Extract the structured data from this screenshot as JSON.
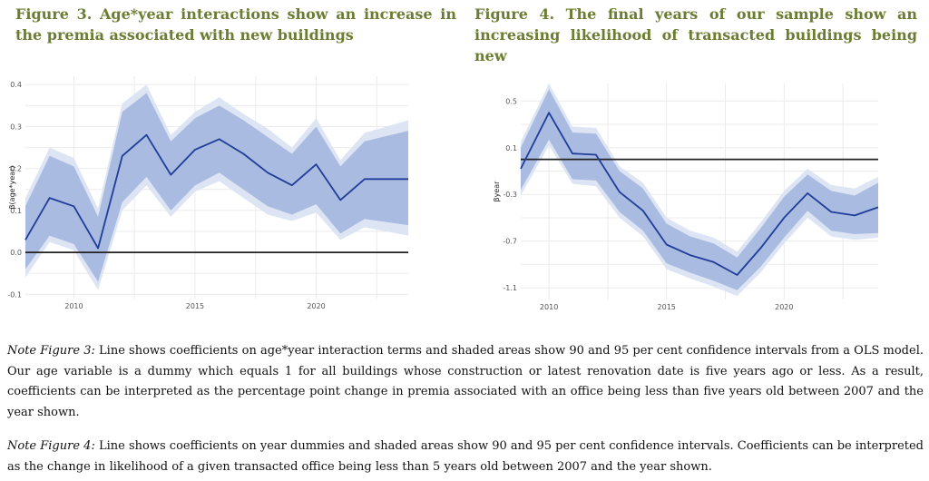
{
  "titles": {
    "fig3": "Figure 3. Age*year interactions show an increase in the premia associated with new buildings",
    "fig4": "Figure 4. The final years of our sample show an increasing likelihood of transacted buildings being new"
  },
  "notes": {
    "fig3_lead": "Note Figure 3:",
    "fig3_body": " Line shows coefficients on age*year interaction terms and shaded areas show 90 and 95 per cent confidence intervals from a OLS model. Our age variable is a dummy which equals 1 for all buildings whose construction or latest renovation date is five years ago or less. As a result, coefficients can be interpreted as the percentage point change in premia associated with an office being less than five years old between 2007 and the year shown.",
    "fig4_lead": "Note Figure 4:",
    "fig4_body": " Line shows coefficients on year dummies and shaded areas show 90 and 95 per cent confidence intervals. Coefficients can be interpreted as the change in likelihood of a given transacted office being less than 5 years old between 2007 and the year shown."
  },
  "colors": {
    "line": "#1f3d99",
    "ci90": "#a9bbe0",
    "ci95": "#dde4f3",
    "zero": "#222222",
    "grid": "#ebebeb"
  },
  "chart_data": [
    {
      "type": "line",
      "ylabel": "β(age*year)",
      "xlim": [
        2008,
        2023.8
      ],
      "ylim": [
        -0.11,
        0.42
      ],
      "xticks": [
        2010,
        2015,
        2020
      ],
      "yticks": [
        -0.1,
        0.0,
        0.1,
        0.2,
        0.3,
        0.4
      ],
      "ytick_labels": [
        "-0.1",
        "0.0",
        "0.1",
        "0.2",
        "0.3",
        "0.4"
      ],
      "reference_line": 0,
      "grid": true,
      "x": [
        2008,
        2009,
        2010,
        2011,
        2012,
        2013,
        2014,
        2015,
        2016,
        2017,
        2018,
        2019,
        2020,
        2021,
        2022,
        2023.8
      ],
      "y": [
        0.03,
        0.13,
        0.11,
        0.01,
        0.23,
        0.28,
        0.185,
        0.245,
        0.27,
        0.235,
        0.19,
        0.16,
        0.21,
        0.125,
        0.175,
        0.175
      ],
      "ci90_low": [
        -0.04,
        0.04,
        0.02,
        -0.07,
        0.12,
        0.18,
        0.1,
        0.16,
        0.19,
        0.15,
        0.11,
        0.09,
        0.115,
        0.045,
        0.08,
        0.065
      ],
      "ci90_high": [
        0.11,
        0.23,
        0.205,
        0.085,
        0.335,
        0.38,
        0.265,
        0.32,
        0.35,
        0.315,
        0.275,
        0.235,
        0.3,
        0.205,
        0.265,
        0.29
      ],
      "ci95_low": [
        -0.06,
        0.025,
        0.005,
        -0.09,
        0.1,
        0.16,
        0.085,
        0.145,
        0.17,
        0.13,
        0.09,
        0.075,
        0.095,
        0.03,
        0.06,
        0.04
      ],
      "ci95_high": [
        0.13,
        0.25,
        0.225,
        0.105,
        0.355,
        0.4,
        0.28,
        0.335,
        0.37,
        0.33,
        0.295,
        0.25,
        0.32,
        0.22,
        0.285,
        0.315
      ]
    },
    {
      "type": "line",
      "ylabel": "βyear",
      "xlim": [
        2008.8,
        2024
      ],
      "ylim": [
        -1.2,
        0.65
      ],
      "xticks": [
        2010,
        2015,
        2020
      ],
      "yticks": [
        -1.1,
        -0.7,
        -0.3,
        0.1,
        0.5
      ],
      "ytick_labels": [
        "-1.1",
        "-0.7",
        "-0.3",
        "0.1",
        "0.5"
      ],
      "reference_line": 0,
      "grid": true,
      "x": [
        2008.8,
        2010,
        2011,
        2012,
        2013,
        2014,
        2015,
        2016,
        2017,
        2018,
        2019,
        2020,
        2021,
        2022,
        2023,
        2024
      ],
      "y": [
        -0.08,
        0.4,
        0.05,
        0.04,
        -0.28,
        -0.44,
        -0.73,
        -0.82,
        -0.88,
        -0.99,
        -0.76,
        -0.5,
        -0.29,
        -0.45,
        -0.48,
        -0.41
      ],
      "ci90_low": [
        -0.26,
        0.17,
        -0.17,
        -0.18,
        -0.45,
        -0.61,
        -0.89,
        -0.97,
        -1.04,
        -1.12,
        -0.92,
        -0.67,
        -0.44,
        -0.61,
        -0.64,
        -0.63
      ],
      "ci90_high": [
        0.1,
        0.6,
        0.23,
        0.22,
        -0.1,
        -0.25,
        -0.55,
        -0.66,
        -0.72,
        -0.84,
        -0.59,
        -0.32,
        -0.13,
        -0.27,
        -0.31,
        -0.2
      ],
      "ci95_low": [
        -0.31,
        0.12,
        -0.21,
        -0.23,
        -0.5,
        -0.66,
        -0.94,
        -1.02,
        -1.09,
        -1.17,
        -0.97,
        -0.72,
        -0.5,
        -0.66,
        -0.69,
        -0.67
      ],
      "ci95_high": [
        0.15,
        0.65,
        0.28,
        0.27,
        -0.06,
        -0.2,
        -0.5,
        -0.61,
        -0.67,
        -0.79,
        -0.54,
        -0.27,
        -0.08,
        -0.22,
        -0.25,
        -0.15
      ]
    }
  ]
}
